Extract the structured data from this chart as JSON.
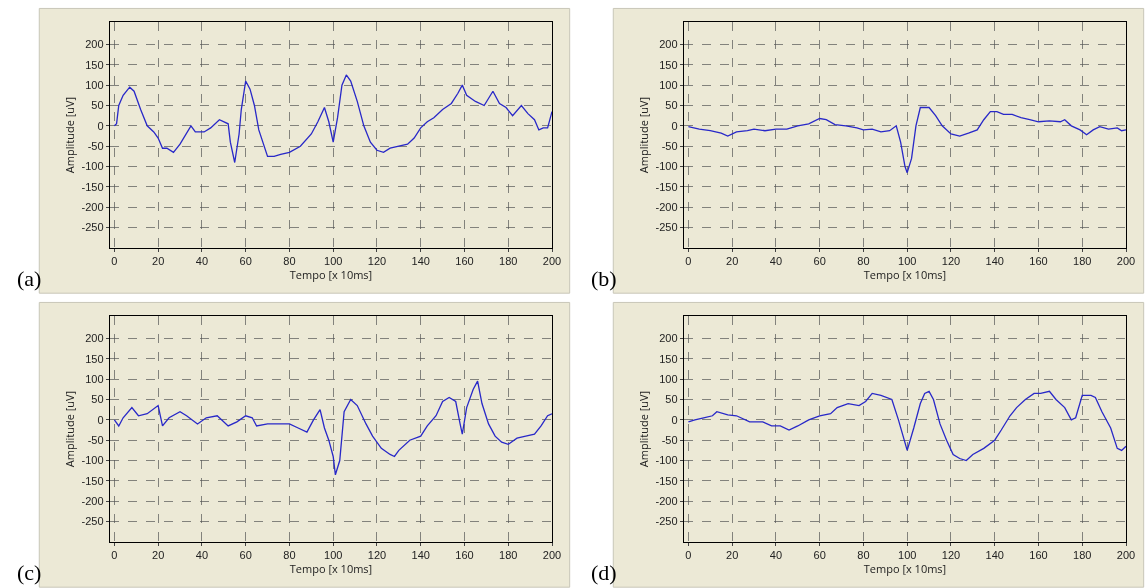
{
  "chart_data": [
    {
      "type": "line",
      "xlabel": "Tempo [x 10ms]",
      "ylabel": "Amplitude [uV]",
      "annotations": [
        "(a)"
      ],
      "grid": true,
      "xlim": [
        -2,
        200
      ],
      "ylim": [
        -300,
        255
      ],
      "xticks": [
        0,
        20,
        40,
        60,
        80,
        100,
        120,
        140,
        160,
        180,
        200
      ],
      "yticks": [
        -250,
        -200,
        -150,
        -100,
        -50,
        0,
        50,
        100,
        150,
        200
      ],
      "x": [
        0,
        1,
        2,
        4,
        7,
        9,
        12,
        15,
        18,
        20,
        22,
        24,
        27,
        30,
        35,
        37,
        41,
        44,
        48,
        52,
        53,
        55,
        57,
        58,
        60,
        62,
        64,
        66,
        70,
        73,
        76,
        80,
        85,
        90,
        93,
        96,
        98,
        100,
        102,
        104,
        106,
        108,
        111,
        114,
        117,
        120,
        123,
        126,
        130,
        134,
        137,
        140,
        143,
        146,
        150,
        154,
        157,
        159,
        161,
        165,
        169,
        173,
        176,
        179,
        182,
        186,
        189,
        192,
        194,
        196,
        198,
        200
      ],
      "series": [
        {
          "color": "#2828c8",
          "values": [
            0,
            5,
            50,
            75,
            95,
            85,
            40,
            0,
            -15,
            -30,
            -55,
            -55,
            -65,
            -45,
            0,
            -15,
            -15,
            -5,
            15,
            5,
            -40,
            -90,
            -20,
            40,
            110,
            90,
            50,
            -10,
            -75,
            -75,
            -70,
            -65,
            -50,
            -20,
            10,
            45,
            10,
            -40,
            20,
            100,
            125,
            110,
            60,
            0,
            -40,
            -60,
            -65,
            -55,
            -50,
            -45,
            -30,
            -5,
            10,
            20,
            40,
            55,
            80,
            100,
            75,
            60,
            50,
            85,
            55,
            45,
            25,
            50,
            30,
            15,
            -10,
            -5,
            -5,
            35
          ]
        }
      ]
    },
    {
      "type": "line",
      "xlabel": "Tempo [x 10ms]",
      "ylabel": "Amplitude [uV]",
      "annotations": [
        "(b)"
      ],
      "grid": true,
      "xlim": [
        -2,
        200
      ],
      "ylim": [
        -300,
        255
      ],
      "xticks": [
        0,
        20,
        40,
        60,
        80,
        100,
        120,
        140,
        160,
        180,
        200
      ],
      "yticks": [
        -250,
        -200,
        -150,
        -100,
        -50,
        0,
        50,
        100,
        150,
        200
      ],
      "x": [
        0,
        5,
        10,
        15,
        18,
        22,
        27,
        30,
        35,
        40,
        45,
        50,
        55,
        60,
        63,
        67,
        72,
        77,
        80,
        84,
        88,
        92,
        95,
        97,
        99,
        100,
        102,
        104,
        106,
        110,
        113,
        116,
        120,
        124,
        128,
        132,
        135,
        138,
        141,
        144,
        148,
        152,
        156,
        160,
        165,
        170,
        172,
        175,
        179,
        182,
        185,
        188,
        192,
        196,
        198,
        200
      ],
      "series": [
        {
          "color": "#2828c8",
          "values": [
            -2,
            -8,
            -12,
            -18,
            -25,
            -15,
            -12,
            -8,
            -12,
            -8,
            -8,
            0,
            5,
            18,
            15,
            3,
            0,
            -5,
            -10,
            -8,
            -15,
            -12,
            0,
            -40,
            -100,
            -115,
            -80,
            0,
            45,
            45,
            25,
            0,
            -20,
            -25,
            -18,
            -10,
            15,
            35,
            35,
            28,
            28,
            20,
            15,
            10,
            12,
            10,
            15,
            0,
            -10,
            -22,
            -10,
            -2,
            -8,
            -5,
            -12,
            -10
          ]
        }
      ]
    },
    {
      "type": "line",
      "xlabel": "Tempo [x 10ms]",
      "ylabel": "Amplitude [uV]",
      "annotations": [
        "(c)"
      ],
      "grid": true,
      "xlim": [
        -2,
        200
      ],
      "ylim": [
        -300,
        255
      ],
      "xticks": [
        0,
        20,
        40,
        60,
        80,
        100,
        120,
        140,
        160,
        180,
        200
      ],
      "yticks": [
        -250,
        -200,
        -150,
        -100,
        -50,
        0,
        50,
        100,
        150,
        200
      ],
      "x": [
        0,
        2,
        4,
        8,
        11,
        15,
        20,
        22,
        25,
        30,
        33,
        38,
        42,
        47,
        52,
        56,
        60,
        63,
        65,
        70,
        80,
        84,
        88,
        91,
        94,
        96,
        98,
        100,
        101,
        103,
        105,
        108,
        111,
        115,
        118,
        122,
        126,
        128,
        130,
        135,
        140,
        143,
        147,
        150,
        153,
        156,
        158,
        159,
        161,
        164,
        166,
        168,
        171,
        174,
        177,
        180,
        184,
        188,
        192,
        195,
        198,
        200
      ],
      "series": [
        {
          "color": "#2828c8",
          "values": [
            0,
            -15,
            5,
            30,
            10,
            15,
            35,
            -15,
            5,
            20,
            10,
            -10,
            5,
            10,
            -15,
            -5,
            10,
            5,
            -15,
            -10,
            -10,
            -20,
            -30,
            0,
            25,
            -20,
            -50,
            -90,
            -135,
            -100,
            20,
            50,
            35,
            -10,
            -40,
            -70,
            -85,
            -90,
            -75,
            -50,
            -40,
            -15,
            10,
            45,
            55,
            45,
            -10,
            -35,
            30,
            75,
            95,
            40,
            -10,
            -40,
            -55,
            -60,
            -45,
            -40,
            -35,
            -15,
            10,
            15
          ]
        }
      ]
    },
    {
      "type": "line",
      "xlabel": "Tempo [x 10ms]",
      "ylabel": "Amplitude [uV]",
      "annotations": [
        "(d)"
      ],
      "grid": true,
      "xlim": [
        -2,
        200
      ],
      "ylim": [
        -300,
        255
      ],
      "xticks": [
        0,
        20,
        40,
        60,
        80,
        100,
        120,
        140,
        160,
        180,
        200
      ],
      "yticks": [
        -250,
        -200,
        -150,
        -100,
        -50,
        0,
        50,
        100,
        150,
        200
      ],
      "x": [
        0,
        3,
        7,
        11,
        13,
        18,
        22,
        28,
        34,
        38,
        42,
        46,
        50,
        55,
        60,
        65,
        68,
        73,
        78,
        81,
        84,
        88,
        93,
        96,
        100,
        103,
        106,
        108,
        110,
        112,
        115,
        118,
        121,
        124,
        127,
        130,
        135,
        140,
        143,
        147,
        150,
        154,
        158,
        161,
        165,
        168,
        172,
        175,
        177,
        180,
        184,
        186,
        189,
        193,
        196,
        198,
        200
      ],
      "series": [
        {
          "color": "#2828c8",
          "values": [
            -5,
            0,
            5,
            10,
            20,
            12,
            10,
            -5,
            -5,
            -15,
            -15,
            -25,
            -15,
            0,
            10,
            15,
            30,
            40,
            35,
            45,
            65,
            60,
            50,
            0,
            -75,
            -20,
            40,
            65,
            70,
            50,
            -10,
            -50,
            -85,
            -95,
            -100,
            -85,
            -70,
            -50,
            -25,
            10,
            30,
            50,
            65,
            65,
            70,
            50,
            30,
            0,
            5,
            60,
            60,
            55,
            20,
            -20,
            -70,
            -75,
            -65
          ]
        }
      ]
    }
  ]
}
